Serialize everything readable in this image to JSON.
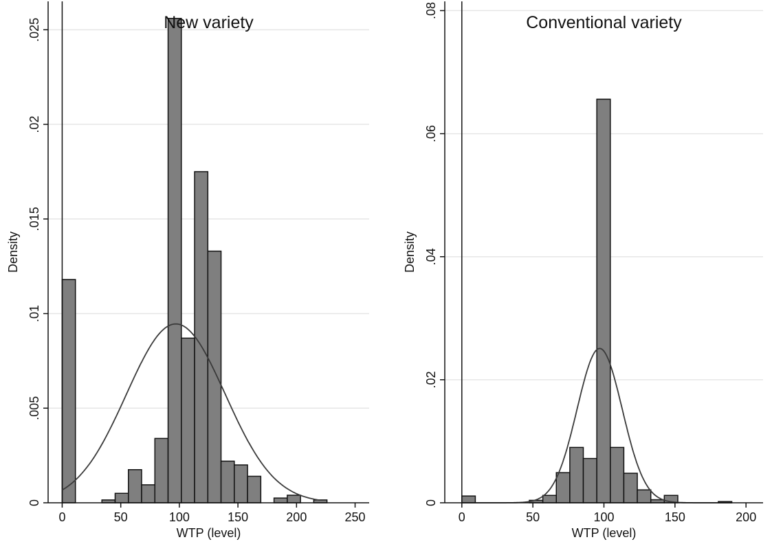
{
  "chart_data": [
    {
      "type": "bar",
      "subtype": "histogram-with-normal-density",
      "title": "New variety",
      "xlabel": "WTP (level)",
      "ylabel": "Density",
      "xlim": [
        -12,
        262
      ],
      "ylim": [
        0,
        0.0265
      ],
      "xticks": [
        0,
        50,
        100,
        150,
        200,
        250
      ],
      "xtick_labels": [
        "0",
        "50",
        "100",
        "150",
        "200",
        "250"
      ],
      "yticks": [
        0,
        0.005,
        0.01,
        0.015,
        0.02,
        0.025
      ],
      "ytick_labels": [
        "0",
        ".005",
        ".01",
        ".015",
        ".02",
        ".025"
      ],
      "grid": true,
      "reference_line_x": 0,
      "bin_width": 11.3,
      "bins": [
        {
          "x0": 0.0,
          "density": 0.0118
        },
        {
          "x0": 33.9,
          "density": 0.00015
        },
        {
          "x0": 45.2,
          "density": 0.0005
        },
        {
          "x0": 56.5,
          "density": 0.00175
        },
        {
          "x0": 67.8,
          "density": 0.00095
        },
        {
          "x0": 79.1,
          "density": 0.0034
        },
        {
          "x0": 90.4,
          "density": 0.0256
        },
        {
          "x0": 101.7,
          "density": 0.0087
        },
        {
          "x0": 113.0,
          "density": 0.0175
        },
        {
          "x0": 124.3,
          "density": 0.0133
        },
        {
          "x0": 135.6,
          "density": 0.0022
        },
        {
          "x0": 146.9,
          "density": 0.002
        },
        {
          "x0": 158.2,
          "density": 0.0014
        },
        {
          "x0": 180.8,
          "density": 0.00025
        },
        {
          "x0": 192.1,
          "density": 0.0004
        },
        {
          "x0": 214.7,
          "density": 0.00015
        }
      ],
      "normal_curve": {
        "mean": 97,
        "sd": 42.2,
        "x_range": [
          0,
          220
        ]
      },
      "bar_color": "#7f7f7f",
      "bar_edge_color": "#111111"
    },
    {
      "type": "bar",
      "subtype": "histogram-with-normal-density",
      "title": "Conventional variety",
      "xlabel": "WTP (level)",
      "ylabel": "Density",
      "xlim": [
        -12,
        212
      ],
      "ylim": [
        0,
        0.0815
      ],
      "xticks": [
        0,
        50,
        100,
        150,
        200
      ],
      "xtick_labels": [
        "0",
        "50",
        "100",
        "150",
        "200"
      ],
      "yticks": [
        0,
        0.02,
        0.04,
        0.06,
        0.08
      ],
      "ytick_labels": [
        "0",
        ".02",
        ".04",
        ".06",
        ".08"
      ],
      "grid": true,
      "reference_line_x": 0,
      "bin_width": 9.5,
      "bins": [
        {
          "x0": 0.0,
          "density": 0.0011
        },
        {
          "x0": 47.5,
          "density": 0.0004
        },
        {
          "x0": 57.0,
          "density": 0.0012
        },
        {
          "x0": 66.5,
          "density": 0.0049
        },
        {
          "x0": 76.0,
          "density": 0.009
        },
        {
          "x0": 85.5,
          "density": 0.0072
        },
        {
          "x0": 95.0,
          "density": 0.0656
        },
        {
          "x0": 104.5,
          "density": 0.009
        },
        {
          "x0": 114.0,
          "density": 0.0048
        },
        {
          "x0": 123.5,
          "density": 0.0021
        },
        {
          "x0": 133.0,
          "density": 0.0005
        },
        {
          "x0": 142.5,
          "density": 0.0012
        },
        {
          "x0": 180.5,
          "density": 0.0002
        }
      ],
      "normal_curve": {
        "mean": 97,
        "sd": 15.9,
        "x_range": [
          0,
          190
        ]
      },
      "bar_color": "#7f7f7f",
      "bar_edge_color": "#111111"
    }
  ],
  "colors": {
    "background": "#ffffff",
    "grid": "#e6e6e6",
    "axis": "#111111",
    "curve": "#3a3a3a"
  }
}
